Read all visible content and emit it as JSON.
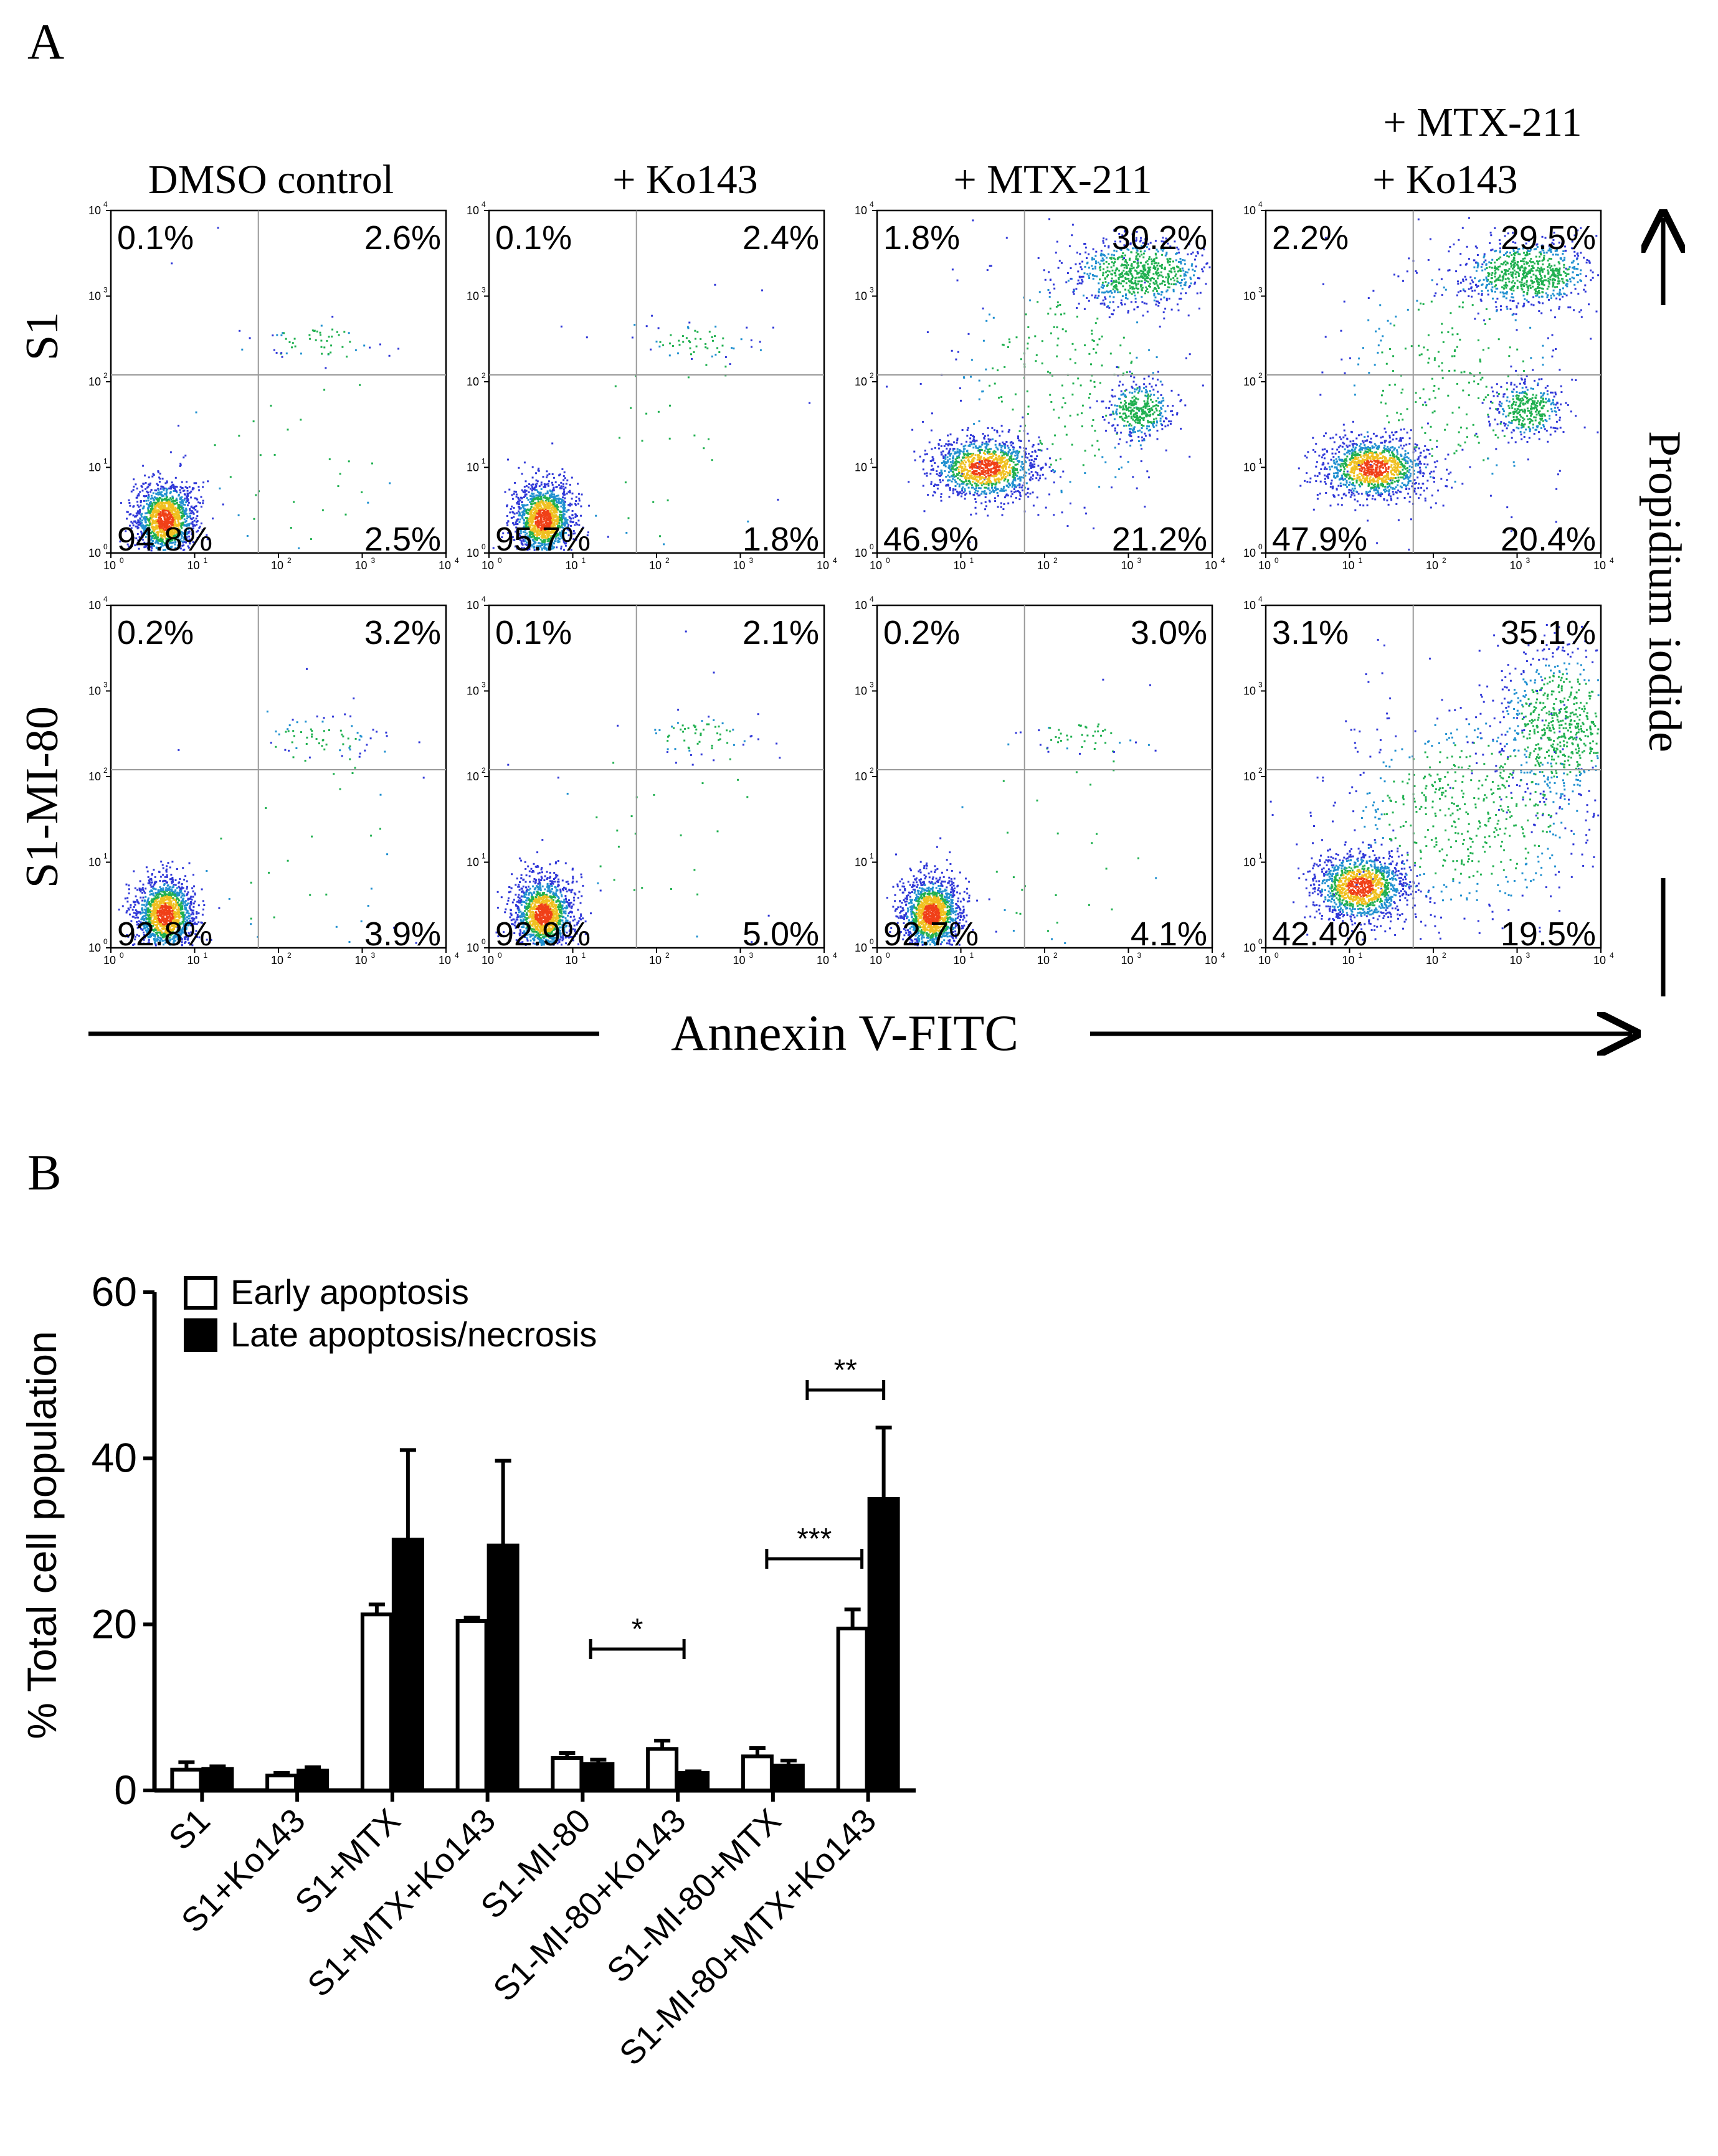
{
  "panel_a": {
    "label": "A",
    "conditions": [
      "DMSO control",
      "+ Ko143",
      "+ MTX-211",
      "+ MTX-211",
      "+ Ko143"
    ],
    "rows": [
      "S1",
      "S1-MI-80"
    ],
    "x_axis_label": "Annexin V-FITC",
    "y_axis_label": "Propidium iodide",
    "tick_labels": [
      "10",
      "10",
      "10",
      "10",
      "10"
    ],
    "tick_exponents": [
      "0",
      "1",
      "2",
      "3",
      "4"
    ]
  },
  "panel_b": {
    "label": "B"
  },
  "chart_data": [
    {
      "type": "scatter",
      "plot_kind": "flow cytometry density dot plots",
      "axis_scale": "log",
      "xlim": [
        1,
        10000
      ],
      "ylim": [
        1,
        10000
      ],
      "xlabel": "Annexin V-FITC",
      "ylabel": "Propidium iodide",
      "quadrant_order": [
        "upper-left",
        "upper-right",
        "lower-left",
        "lower-right"
      ],
      "plots": [
        {
          "row": "S1",
          "condition": "DMSO control",
          "quadrants": [
            "0.1%",
            "2.6%",
            "94.8%",
            "2.5%"
          ]
        },
        {
          "row": "S1",
          "condition": "+ Ko143",
          "quadrants": [
            "0.1%",
            "2.4%",
            "95.7%",
            "1.8%"
          ]
        },
        {
          "row": "S1",
          "condition": "+ MTX-211",
          "quadrants": [
            "1.8%",
            "30.2%",
            "46.9%",
            "21.2%"
          ]
        },
        {
          "row": "S1",
          "condition": "+ MTX-211 + Ko143",
          "quadrants": [
            "2.2%",
            "29.5%",
            "47.9%",
            "20.4%"
          ]
        },
        {
          "row": "S1-MI-80",
          "condition": "DMSO control",
          "quadrants": [
            "0.2%",
            "3.2%",
            "92.8%",
            "3.9%"
          ]
        },
        {
          "row": "S1-MI-80",
          "condition": "+ Ko143",
          "quadrants": [
            "0.1%",
            "2.1%",
            "92.9%",
            "5.0%"
          ]
        },
        {
          "row": "S1-MI-80",
          "condition": "+ MTX-211",
          "quadrants": [
            "0.2%",
            "3.0%",
            "92.7%",
            "4.1%"
          ]
        },
        {
          "row": "S1-MI-80",
          "condition": "+ MTX-211 + Ko143",
          "quadrants": [
            "3.1%",
            "35.1%",
            "42.4%",
            "19.5%"
          ]
        }
      ]
    },
    {
      "type": "bar",
      "categories": [
        "S1",
        "S1+Ko143",
        "S1+MTX",
        "S1+MTX+Ko143",
        "S1-MI-80",
        "S1-MI-80+Ko143",
        "S1-MI-80+MTX",
        "S1-MI-80+MTX+Ko143"
      ],
      "series": [
        {
          "name": "Early apoptosis",
          "fill": "#ffffff",
          "values": [
            2.5,
            1.8,
            21.2,
            20.4,
            3.9,
            5.0,
            4.1,
            19.5
          ],
          "errors": [
            0.9,
            0.3,
            1.2,
            0.4,
            0.6,
            1.0,
            1.0,
            2.3
          ]
        },
        {
          "name": "Late apoptosis/necrosis",
          "fill": "#000000",
          "values": [
            2.6,
            2.4,
            30.2,
            29.5,
            3.2,
            2.1,
            3.0,
            35.1
          ],
          "errors": [
            0.3,
            0.4,
            10.8,
            10.2,
            0.5,
            0.2,
            0.6,
            8.6
          ]
        }
      ],
      "ylabel": "% Total cell population",
      "ylim": [
        0,
        60
      ],
      "yticks": [
        0,
        20,
        40,
        60
      ],
      "legend_position": "top-left",
      "significance": [
        {
          "category": "S1-MI-80+Ko143",
          "label": "*"
        },
        {
          "category": "S1-MI-80+MTX+Ko143",
          "label": "***"
        },
        {
          "category": "S1-MI-80+MTX+Ko143",
          "label": "**"
        }
      ]
    }
  ]
}
